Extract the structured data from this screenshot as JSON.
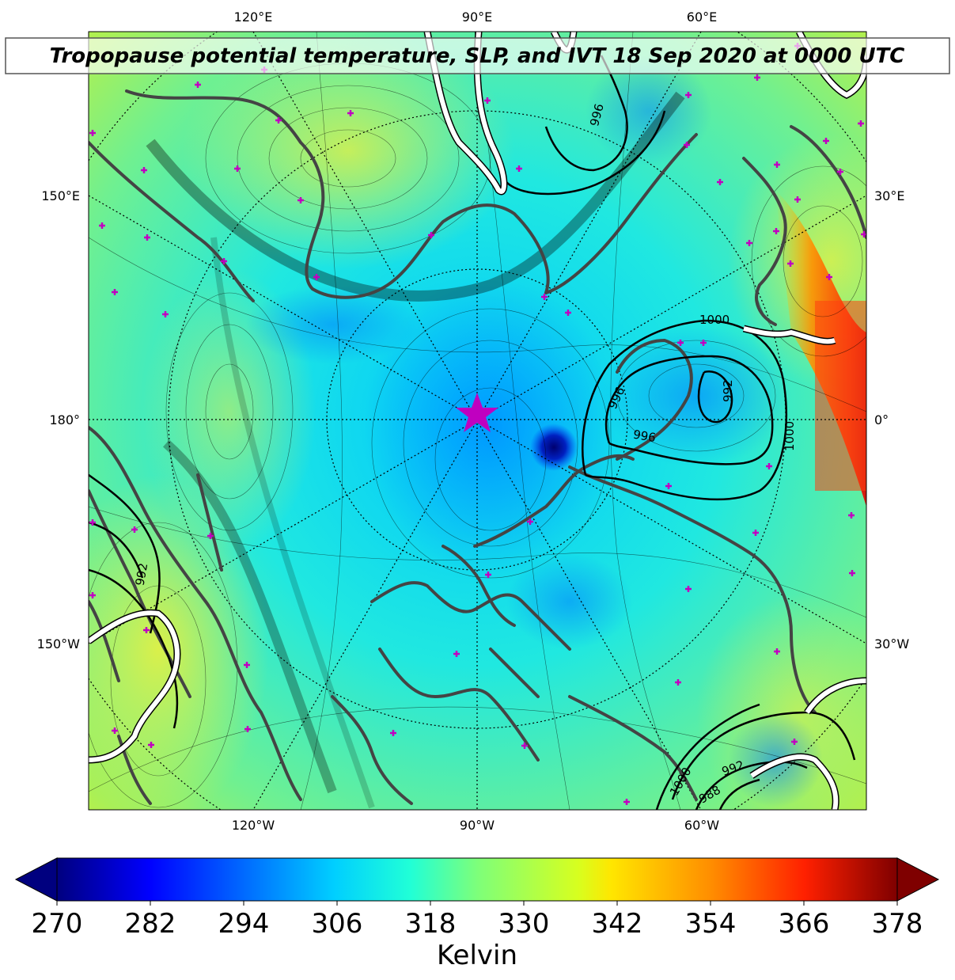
{
  "title": "Tropopause potential temperature, SLP, and IVT 18 Sep 2020 at 0000 UTC",
  "lon_labels_top": [
    "120°E",
    "90°E",
    "60°E"
  ],
  "lon_labels_bottom": [
    "120°W",
    "90°W",
    "60°W"
  ],
  "lat_labels_left": [
    "150°E",
    "180°",
    "150°W"
  ],
  "lat_labels_right": [
    "30°E",
    "0°",
    "30°W"
  ],
  "slp_contour_labels": [
    "1000",
    "996",
    "996",
    "992",
    "1000",
    "992",
    "1000",
    "992",
    "988",
    "996"
  ],
  "colorbar": {
    "label": "Kelvin",
    "ticks": [
      "270",
      "282",
      "294",
      "306",
      "318",
      "330",
      "342",
      "354",
      "366",
      "378"
    ],
    "min": 270,
    "max": 378,
    "colormap": "jet",
    "extend": "both"
  },
  "colors": {
    "coastline": "#444444",
    "slp_contour": "#000000",
    "ivt_contour": "#ffffff",
    "marker": "#c000c0"
  },
  "markers": {
    "star_icon": "pole-star-icon",
    "plus_icon": "station-plus-icon"
  }
}
